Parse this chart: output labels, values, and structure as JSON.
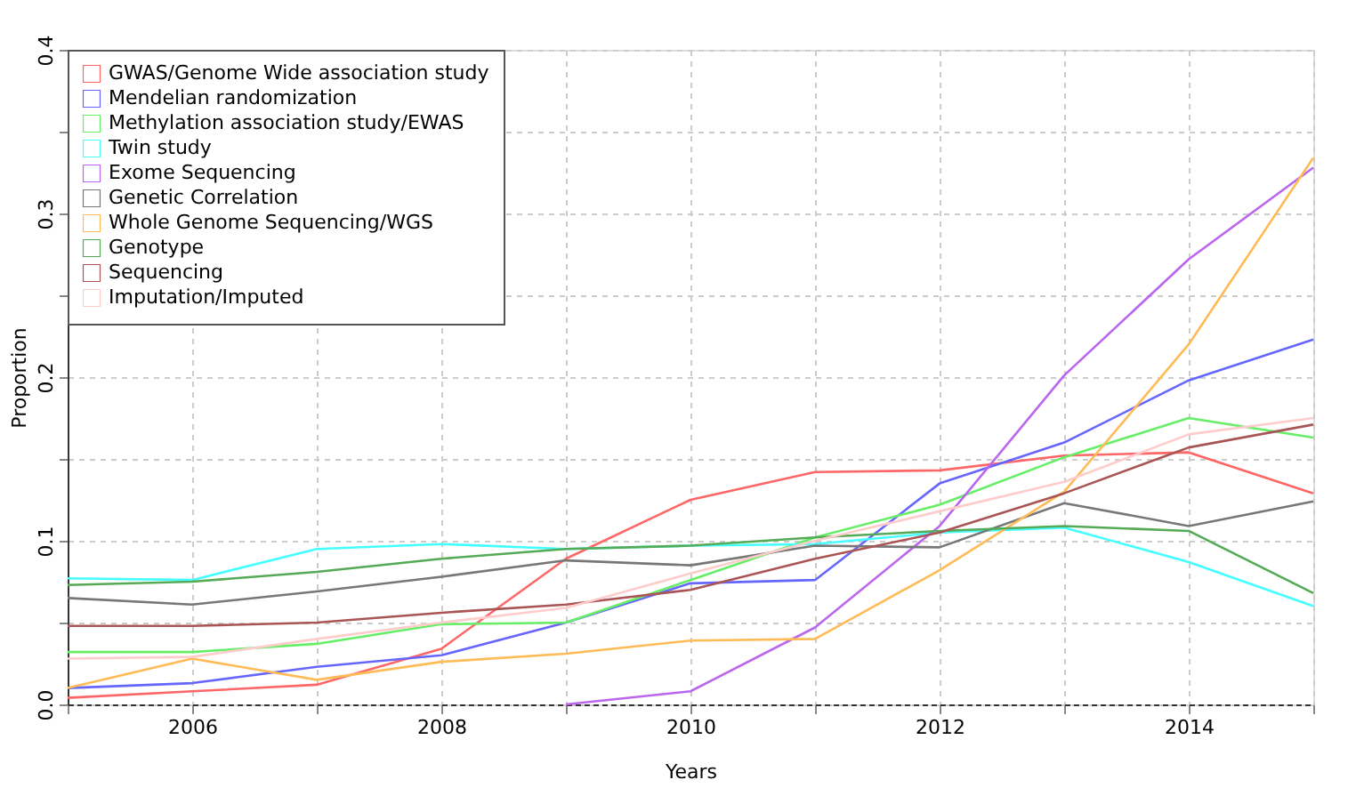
{
  "chart_data": {
    "type": "line",
    "xlabel": "Years",
    "ylabel": "Proportion",
    "x": [
      2005,
      2006,
      2007,
      2008,
      2009,
      2010,
      2011,
      2012,
      2013,
      2014,
      2015
    ],
    "xlim": [
      2005,
      2015
    ],
    "xticks": [
      {
        "value": 2005,
        "label": null
      },
      2006,
      {
        "value": 2007,
        "label": null
      },
      2008,
      {
        "value": 2009,
        "label": null
      },
      2010,
      {
        "value": 2011,
        "label": null
      },
      2012,
      {
        "value": 2013,
        "label": null
      },
      2014,
      {
        "value": 2015,
        "label": null
      }
    ],
    "ylim": [
      0,
      0.4
    ],
    "yticks": [
      {
        "value": 0,
        "label": "0.0"
      },
      {
        "value": 0.05,
        "label": null
      },
      0.1,
      {
        "value": 0.15,
        "label": null
      },
      0.2,
      {
        "value": 0.25,
        "label": null
      },
      0.3,
      {
        "value": 0.35,
        "label": null
      },
      0.4
    ],
    "grid": true,
    "legend": "top left",
    "marker": "none",
    "line_style": "solid",
    "series": [
      {
        "name": "GWAS/Genome Wide association study",
        "color": "#ff6666",
        "values": [
          0.004,
          0.008,
          0.012,
          0.034,
          0.089,
          0.125,
          0.142,
          0.143,
          0.152,
          0.154,
          0.129
        ]
      },
      {
        "name": "Mendelian randomization",
        "color": "#6666ff",
        "values": [
          0.01,
          0.013,
          0.023,
          0.03,
          0.05,
          0.074,
          0.076,
          0.135,
          0.16,
          0.198,
          0.223
        ]
      },
      {
        "name": "Methylation association study/EWAS",
        "color": "#66ee66",
        "values": [
          0.032,
          0.032,
          0.037,
          0.049,
          0.05,
          0.076,
          0.102,
          0.122,
          0.151,
          0.175,
          0.163
        ]
      },
      {
        "name": "Twin study",
        "color": "#44ffff",
        "values": [
          0.077,
          0.076,
          0.095,
          0.098,
          0.095,
          0.097,
          0.098,
          0.105,
          0.108,
          0.087,
          0.06
        ]
      },
      {
        "name": "Exome Sequencing",
        "color": "#bb66ee",
        "values": [
          null,
          null,
          null,
          null,
          0.0,
          0.008,
          0.047,
          0.109,
          0.201,
          0.272,
          0.328
        ]
      },
      {
        "name": "Genetic Correlation",
        "color": "#777777",
        "values": [
          0.065,
          0.061,
          0.069,
          0.078,
          0.088,
          0.085,
          0.097,
          0.096,
          0.123,
          0.109,
          0.124
        ]
      },
      {
        "name": "Whole Genome Sequencing/WGS",
        "color": "#ffbb55",
        "values": [
          0.01,
          0.028,
          0.015,
          0.026,
          0.031,
          0.039,
          0.04,
          0.082,
          0.13,
          0.22,
          0.334
        ]
      },
      {
        "name": "Genotype",
        "color": "#55aa55",
        "values": [
          0.073,
          0.075,
          0.081,
          0.089,
          0.095,
          0.097,
          0.102,
          0.106,
          0.109,
          0.106,
          0.068
        ]
      },
      {
        "name": "Sequencing",
        "color": "#aa5555",
        "values": [
          0.048,
          0.048,
          0.05,
          0.056,
          0.061,
          0.07,
          0.089,
          0.105,
          0.129,
          0.157,
          0.171
        ]
      },
      {
        "name": "Imputation/Imputed",
        "color": "#ffcccc",
        "values": [
          0.028,
          0.029,
          0.04,
          0.05,
          0.059,
          0.08,
          0.1,
          0.118,
          0.136,
          0.165,
          0.175
        ]
      }
    ]
  }
}
